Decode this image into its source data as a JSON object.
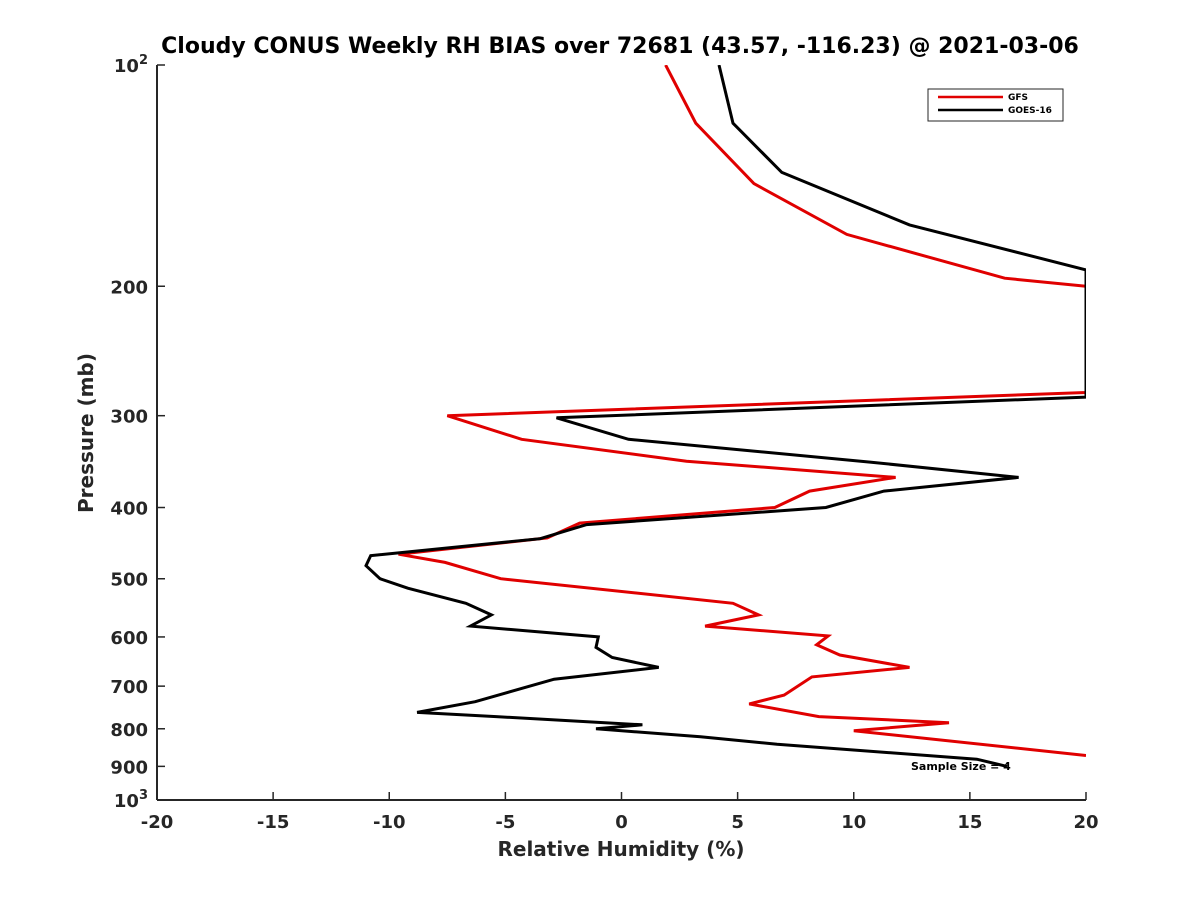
{
  "chart_data": {
    "type": "line",
    "title": "Cloudy CONUS Weekly RH BIAS over 72681 (43.57, -116.23) @ 2021-03-06",
    "xlabel": "Relative Humidity (%)",
    "ylabel": "Pressure (mb)",
    "xlim": [
      -20,
      20
    ],
    "ylim": [
      100,
      1000
    ],
    "y_scale": "log",
    "y_reversed": true,
    "grid": false,
    "legend_position": "top-right",
    "x_ticks": [
      "-20",
      "-15",
      "-10",
      "-5",
      "0",
      "5",
      "10",
      "15",
      "20"
    ],
    "y_ticks": [
      {
        "value": 100,
        "base": "10",
        "exp": "2"
      },
      {
        "value": 200,
        "label": "200"
      },
      {
        "value": 300,
        "label": "300"
      },
      {
        "value": 400,
        "label": "400"
      },
      {
        "value": 500,
        "label": "500"
      },
      {
        "value": 600,
        "label": "600"
      },
      {
        "value": 700,
        "label": "700"
      },
      {
        "value": 800,
        "label": "800"
      },
      {
        "value": 900,
        "label": "900"
      },
      {
        "value": 1000,
        "base": "10",
        "exp": "3"
      }
    ],
    "annotation": "Sample Size = 4",
    "series": [
      {
        "name": "GFS",
        "color": "#e00000",
        "points": [
          [
            1.9,
            100
          ],
          [
            3.2,
            120
          ],
          [
            5.7,
            145
          ],
          [
            9.7,
            170
          ],
          [
            16.5,
            195
          ],
          [
            20,
            200
          ],
          [
            20,
            279
          ],
          [
            -7.5,
            300
          ],
          [
            -4.3,
            323
          ],
          [
            2.8,
            346
          ],
          [
            11.8,
            364
          ],
          [
            8.1,
            380
          ],
          [
            6.6,
            400
          ],
          [
            -1.8,
            420
          ],
          [
            -3.2,
            440
          ],
          [
            -9.6,
            463
          ],
          [
            -7.6,
            475
          ],
          [
            -5.2,
            500
          ],
          [
            4.8,
            540
          ],
          [
            5.9,
            560
          ],
          [
            3.6,
            580
          ],
          [
            8.9,
            598
          ],
          [
            8.4,
            615
          ],
          [
            9.4,
            635
          ],
          [
            12.4,
            660
          ],
          [
            8.2,
            680
          ],
          [
            7.0,
            720
          ],
          [
            5.5,
            740
          ],
          [
            8.5,
            770
          ],
          [
            14.1,
            785
          ],
          [
            10.0,
            805
          ],
          [
            20,
            870
          ]
        ]
      },
      {
        "name": "GOES-16",
        "color": "#000000",
        "points": [
          [
            4.2,
            100
          ],
          [
            4.8,
            120
          ],
          [
            6.9,
            140
          ],
          [
            12.4,
            165
          ],
          [
            20,
            190
          ],
          [
            20,
            283
          ],
          [
            -2.8,
            302
          ],
          [
            0.3,
            323
          ],
          [
            10.7,
            347
          ],
          [
            17.1,
            364
          ],
          [
            11.3,
            380
          ],
          [
            8.8,
            400
          ],
          [
            -1.5,
            422
          ],
          [
            -3.5,
            441
          ],
          [
            -10.8,
            465
          ],
          [
            -11.0,
            480
          ],
          [
            -10.4,
            500
          ],
          [
            -9.2,
            515
          ],
          [
            -6.7,
            540
          ],
          [
            -5.6,
            560
          ],
          [
            -6.5,
            580
          ],
          [
            -1.0,
            600
          ],
          [
            -1.1,
            620
          ],
          [
            -0.4,
            640
          ],
          [
            1.6,
            660
          ],
          [
            -2.9,
            685
          ],
          [
            -4.3,
            705
          ],
          [
            -6.3,
            735
          ],
          [
            -8.8,
            760
          ],
          [
            -5.4,
            770
          ],
          [
            0.9,
            790
          ],
          [
            -1.1,
            800
          ],
          [
            3.4,
            820
          ],
          [
            6.7,
            840
          ],
          [
            15.3,
            880
          ],
          [
            16.6,
            900
          ]
        ]
      }
    ]
  }
}
